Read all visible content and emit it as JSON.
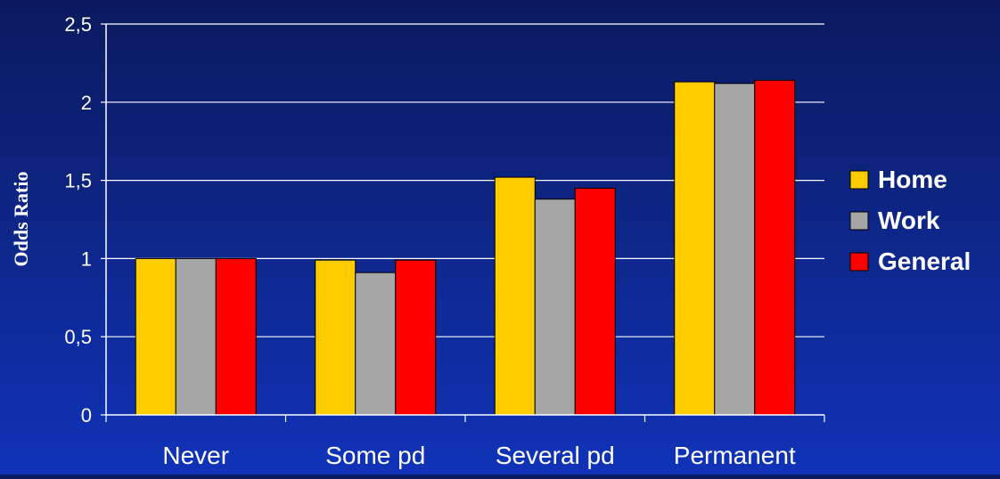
{
  "chart_data": {
    "type": "bar",
    "categories": [
      "Never",
      "Some pd",
      "Several pd",
      "Permanent"
    ],
    "series": [
      {
        "name": "Home",
        "color": "#ffcc00",
        "values": [
          1.0,
          0.99,
          1.52,
          2.13
        ]
      },
      {
        "name": "Work",
        "color": "#a6a6a6",
        "values": [
          1.0,
          0.91,
          1.38,
          2.12
        ]
      },
      {
        "name": "General",
        "color": "#ff0000",
        "values": [
          1.0,
          0.99,
          1.45,
          2.14
        ]
      }
    ],
    "title": "",
    "xlabel": "",
    "ylabel": "Odds Ratio",
    "ylim": [
      0,
      2.5
    ],
    "yticks": [
      {
        "value": 0,
        "label": "0"
      },
      {
        "value": 0.5,
        "label": "0,5"
      },
      {
        "value": 1,
        "label": "1"
      },
      {
        "value": 1.5,
        "label": "1,5"
      },
      {
        "value": 2,
        "label": "2"
      },
      {
        "value": 2.5,
        "label": "2,5"
      }
    ],
    "grid": true,
    "legend_position": "right",
    "colors": {
      "axis": "#ffffff",
      "grid": "#ffffff",
      "text": "#ffffff",
      "bar_stroke": "#000000"
    }
  }
}
